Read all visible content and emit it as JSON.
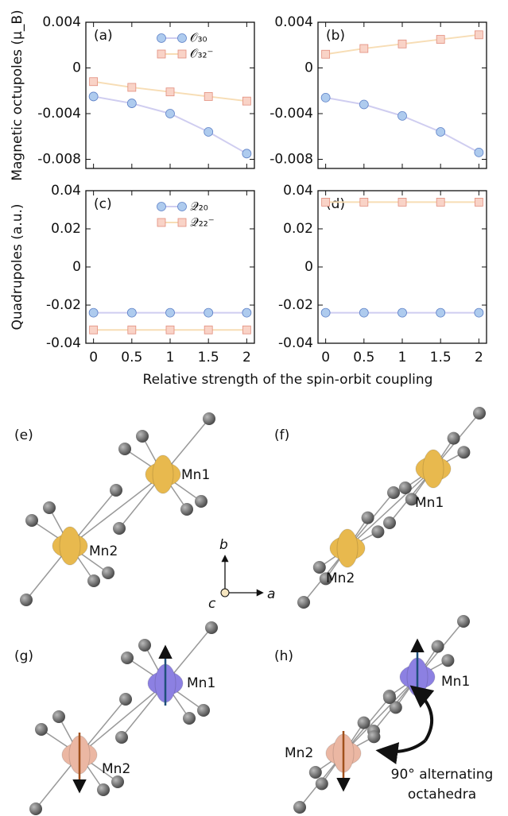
{
  "chart_data": [
    {
      "type": "line",
      "panel": "(a)",
      "xticks": [
        0,
        0.5,
        1,
        1.5,
        2
      ],
      "xlim": [
        -0.1,
        2.1
      ],
      "show_xtick_labels": false,
      "ylim": [
        -0.0088,
        0.004
      ],
      "yticks": [
        0.004,
        0,
        -0.004,
        -0.008
      ],
      "x": [
        0,
        0.5,
        1,
        1.5,
        2
      ],
      "series": [
        {
          "name": "𝒪₃₀",
          "marker": "circle",
          "color": "#aecbee",
          "line_color": "#cfcdf0",
          "values": [
            -0.0025,
            -0.0031,
            -0.004,
            -0.0056,
            -0.0075
          ]
        },
        {
          "name": "𝒪₃₂⁻",
          "marker": "square",
          "color": "#f9d3c7",
          "line_color": "#f7ddb5",
          "values": [
            -0.0012,
            -0.0017,
            -0.0021,
            -0.0025,
            -0.0029
          ]
        }
      ]
    },
    {
      "type": "line",
      "panel": "(b)",
      "xticks": [
        0,
        0.5,
        1,
        1.5,
        2
      ],
      "xlim": [
        -0.1,
        2.1
      ],
      "show_xtick_labels": false,
      "ylim": [
        -0.0088,
        0.004
      ],
      "yticks": [
        0.004,
        0,
        -0.004,
        -0.008
      ],
      "x": [
        0,
        0.5,
        1,
        1.5,
        2
      ],
      "series": [
        {
          "marker": "circle",
          "color": "#aecbee",
          "line_color": "#cfcdf0",
          "values": [
            -0.0026,
            -0.0032,
            -0.0042,
            -0.0056,
            -0.0074
          ]
        },
        {
          "marker": "square",
          "color": "#f9d3c7",
          "line_color": "#f7ddb5",
          "values": [
            0.0012,
            0.0017,
            0.0021,
            0.0025,
            0.0029
          ]
        }
      ]
    },
    {
      "type": "line",
      "panel": "(c)",
      "xticks": [
        0,
        0.5,
        1,
        1.5,
        2
      ],
      "xlim": [
        -0.1,
        2.1
      ],
      "show_xtick_labels": true,
      "ylim": [
        -0.04,
        0.04
      ],
      "yticks": [
        0.04,
        0.02,
        0,
        -0.02,
        -0.04
      ],
      "x": [
        0,
        0.5,
        1,
        1.5,
        2
      ],
      "series": [
        {
          "name": "𝒬₂₀",
          "marker": "circle",
          "color": "#aecbee",
          "line_color": "#cfcdf0",
          "values": [
            -0.024,
            -0.024,
            -0.024,
            -0.024,
            -0.024
          ]
        },
        {
          "name": "𝒬₂₂⁻",
          "marker": "square",
          "color": "#f9d3c7",
          "line_color": "#f7ddb5",
          "values": [
            -0.033,
            -0.033,
            -0.033,
            -0.033,
            -0.033
          ]
        }
      ]
    },
    {
      "type": "line",
      "panel": "(d)",
      "xticks": [
        0,
        0.5,
        1,
        1.5,
        2
      ],
      "xlim": [
        -0.1,
        2.1
      ],
      "show_xtick_labels": true,
      "ylim": [
        -0.04,
        0.04
      ],
      "yticks": [
        0.04,
        0.02,
        0,
        -0.02,
        -0.04
      ],
      "x": [
        0,
        0.5,
        1,
        1.5,
        2
      ],
      "series": [
        {
          "marker": "circle",
          "color": "#aecbee",
          "line_color": "#cfcdf0",
          "values": [
            -0.024,
            -0.024,
            -0.024,
            -0.024,
            -0.024
          ]
        },
        {
          "marker": "square",
          "color": "#f9d3c7",
          "line_color": "#f7ddb5",
          "values": [
            0.034,
            0.034,
            0.034,
            0.034,
            0.034
          ]
        }
      ]
    }
  ],
  "labels": {
    "ylabel_top": "Magnetic octupoles (μ_B)",
    "ylabel_bottom": "Quadrupoles (a.u.)",
    "xlabel": "Relative strength of the spin-orbit coupling"
  },
  "diagrams": {
    "panels": [
      {
        "label": "(e)",
        "mn1": "Mn1",
        "mn2": "Mn2"
      },
      {
        "label": "(f)",
        "mn1": "Mn1",
        "mn2": "Mn2"
      },
      {
        "label": "(g)",
        "mn1": "Mn1",
        "mn2": "Mn2"
      },
      {
        "label": "(h)",
        "mn1": "Mn1",
        "mn2": "Mn2"
      }
    ],
    "axes": {
      "b": "b",
      "c": "c",
      "a": "a"
    },
    "annotation": [
      "90° alternating",
      "octahedra"
    ]
  }
}
